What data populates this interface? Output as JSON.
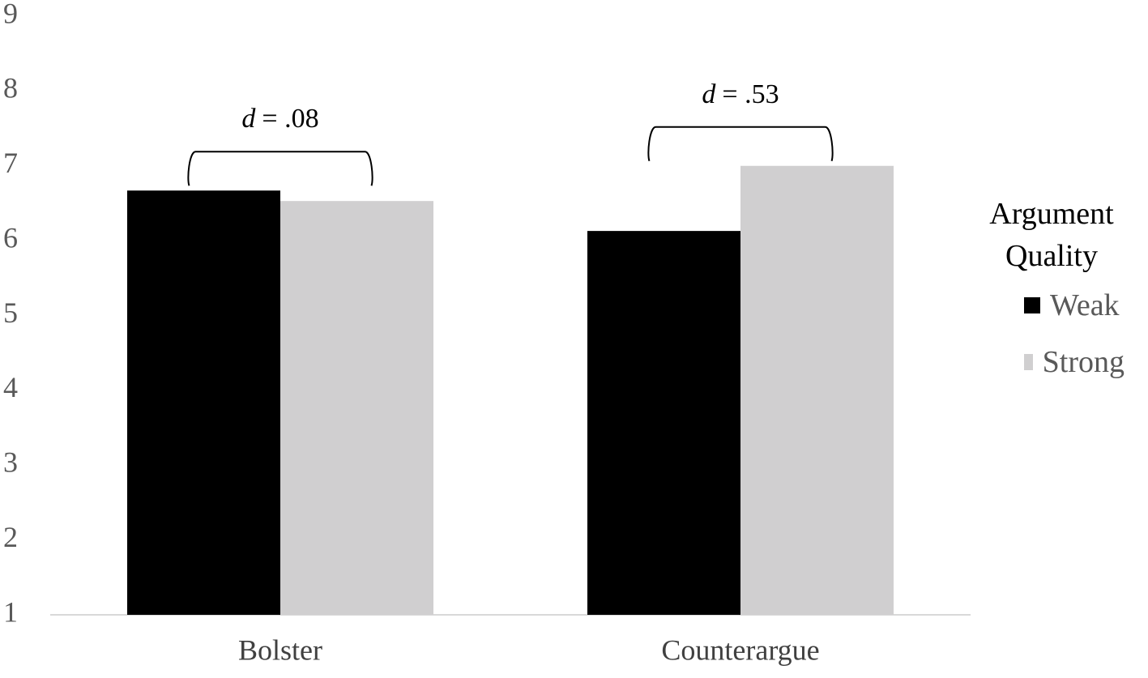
{
  "chart_data": {
    "type": "bar",
    "categories": [
      "Bolster",
      "Counterargue"
    ],
    "series": [
      {
        "name": "Weak",
        "color": "#000000",
        "values": [
          6.67,
          6.13
        ]
      },
      {
        "name": "Strong",
        "color": "#d0cfd0",
        "values": [
          6.53,
          7.0
        ]
      }
    ],
    "ylim": [
      1,
      9
    ],
    "yticks": [
      1,
      2,
      3,
      4,
      5,
      6,
      7,
      8,
      9
    ],
    "grid": false,
    "legend_title": "Argument Quality",
    "legend_position": "right",
    "annotations": [
      {
        "symbol": "d",
        "text": "= .08"
      },
      {
        "symbol": "d",
        "text": "= .53"
      }
    ]
  }
}
